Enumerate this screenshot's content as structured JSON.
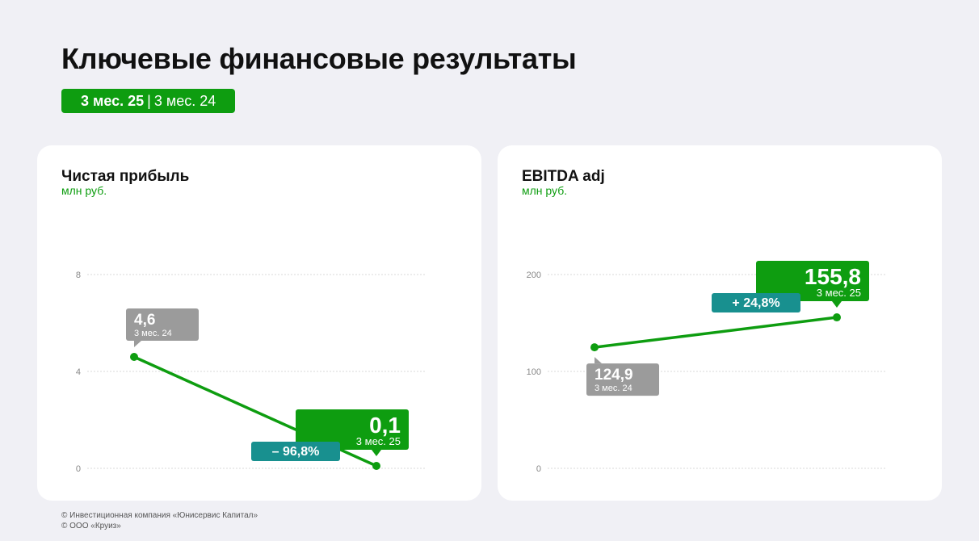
{
  "header": {
    "title": "Ключевые финансовые результаты",
    "period_current": "3 мес. 25",
    "period_separator": "|",
    "period_previous": "3 мес. 24"
  },
  "colors": {
    "accent": "#0e9d10",
    "previous": "#9b9b9b",
    "change": "#18908f",
    "grid": "#d9d9d9"
  },
  "chart_data": [
    {
      "type": "line",
      "title": "Чистая прибыль",
      "unit": "млн руб.",
      "ylim": [
        0,
        8
      ],
      "yticks": [
        {
          "value": 0,
          "label": "0"
        },
        {
          "value": 4,
          "label": "4"
        },
        {
          "value": 8,
          "label": "8"
        }
      ],
      "grid": true,
      "points": [
        {
          "period": "3 мес. 24",
          "value": 4.6,
          "label": "4,6",
          "style": "previous"
        },
        {
          "period": "3 мес. 25",
          "value": 0.1,
          "label": "0,1",
          "style": "current"
        }
      ],
      "change": {
        "label": "– 96,8%"
      }
    },
    {
      "type": "line",
      "title": "EBITDA adj",
      "unit": "млн руб.",
      "ylim": [
        0,
        200
      ],
      "yticks": [
        {
          "value": 0,
          "label": "0"
        },
        {
          "value": 100,
          "label": "100"
        },
        {
          "value": 200,
          "label": "200"
        }
      ],
      "grid": true,
      "points": [
        {
          "period": "3 мес. 24",
          "value": 124.9,
          "label": "124,9",
          "style": "previous"
        },
        {
          "period": "3 мес. 25",
          "value": 155.8,
          "label": "155,8",
          "style": "current"
        }
      ],
      "change": {
        "label": "+ 24,8%"
      }
    }
  ],
  "footer": {
    "line1": "© Инвестиционная компания «Юнисервис Капитал»",
    "line2": "© ООО «Круиз»"
  }
}
